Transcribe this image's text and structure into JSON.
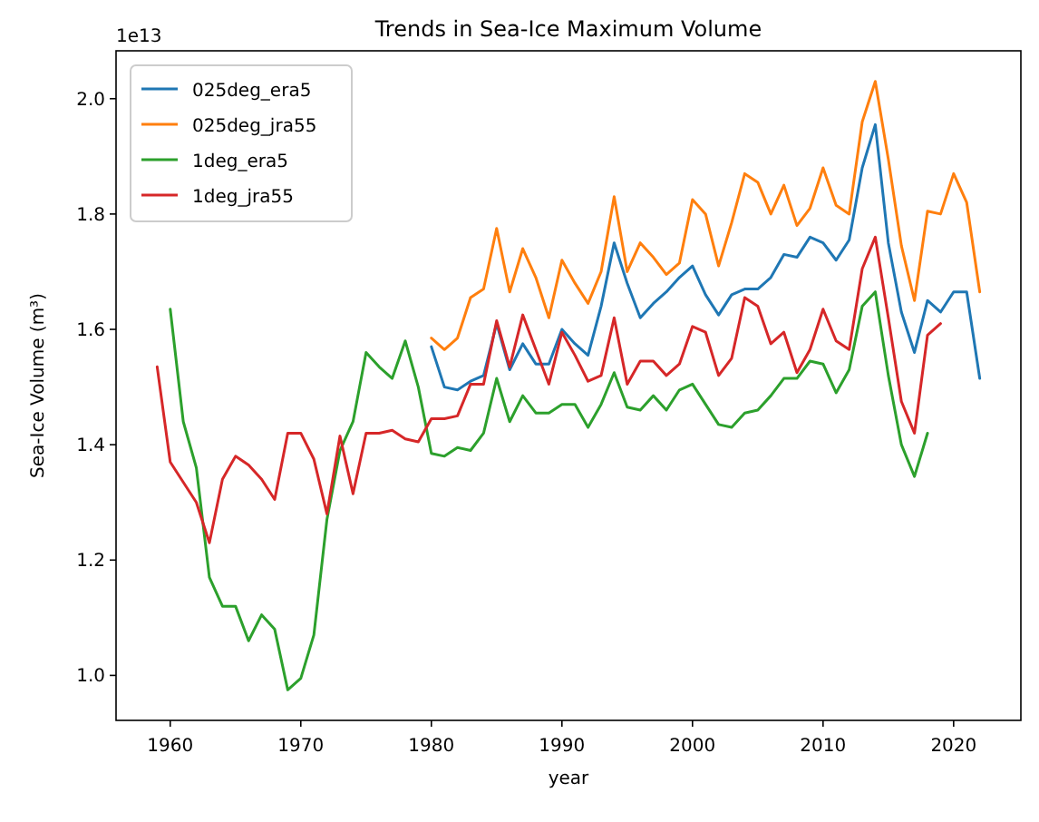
{
  "chart_data": {
    "type": "line",
    "title": "Trends in Sea-Ice Maximum Volume",
    "xlabel": "year",
    "ylabel": "Sea-Ice Volume (m³)",
    "annotations": [
      "1e13"
    ],
    "xlim": [
      1955.85,
      2025.15
    ],
    "xticks": [
      1960,
      1970,
      1980,
      1990,
      2000,
      2010,
      2020
    ],
    "ylim": [
      0.922,
      2.083
    ],
    "yticks": [
      {
        "value": 1.0,
        "label": "1.0"
      },
      1.2,
      1.4,
      1.6,
      1.8,
      {
        "value": 2.0,
        "label": "2.0"
      }
    ],
    "legend": "top left",
    "grid": false,
    "series": [
      {
        "name": "025deg_era5",
        "color": "#1f77b4",
        "x": [
          1980,
          1981,
          1982,
          1983,
          1984,
          1985,
          1986,
          1987,
          1988,
          1989,
          1990,
          1991,
          1992,
          1993,
          1994,
          1995,
          1996,
          1997,
          1998,
          1999,
          2000,
          2001,
          2002,
          2003,
          2004,
          2005,
          2006,
          2007,
          2008,
          2009,
          2010,
          2011,
          2012,
          2013,
          2014,
          2015,
          2016,
          2017,
          2018,
          2019,
          2020,
          2021,
          2022
        ],
        "values": [
          1.57,
          1.5,
          1.495,
          1.51,
          1.52,
          1.61,
          1.53,
          1.575,
          1.54,
          1.54,
          1.6,
          1.575,
          1.555,
          1.64,
          1.75,
          1.68,
          1.62,
          1.645,
          1.665,
          1.69,
          1.71,
          1.66,
          1.625,
          1.66,
          1.67,
          1.67,
          1.69,
          1.73,
          1.725,
          1.76,
          1.75,
          1.72,
          1.755,
          1.88,
          1.955,
          1.75,
          1.63,
          1.56,
          1.65,
          1.63,
          1.665,
          1.665,
          1.515
        ]
      },
      {
        "name": "025deg_jra55",
        "color": "#ff7f0e",
        "x": [
          1980,
          1981,
          1982,
          1983,
          1984,
          1985,
          1986,
          1987,
          1988,
          1989,
          1990,
          1991,
          1992,
          1993,
          1994,
          1995,
          1996,
          1997,
          1998,
          1999,
          2000,
          2001,
          2002,
          2003,
          2004,
          2005,
          2006,
          2007,
          2008,
          2009,
          2010,
          2011,
          2012,
          2013,
          2014,
          2015,
          2016,
          2017,
          2018,
          2019,
          2020,
          2021,
          2022
        ],
        "values": [
          1.585,
          1.565,
          1.585,
          1.655,
          1.67,
          1.775,
          1.665,
          1.74,
          1.69,
          1.62,
          1.72,
          1.68,
          1.645,
          1.7,
          1.83,
          1.7,
          1.75,
          1.725,
          1.695,
          1.715,
          1.825,
          1.8,
          1.71,
          1.785,
          1.87,
          1.855,
          1.8,
          1.85,
          1.78,
          1.81,
          1.88,
          1.815,
          1.8,
          1.96,
          2.03,
          1.895,
          1.745,
          1.65,
          1.805,
          1.8,
          1.87,
          1.82,
          1.665
        ]
      },
      {
        "name": "1deg_era5",
        "color": "#2ca02c",
        "x": [
          1960,
          1961,
          1962,
          1963,
          1964,
          1965,
          1966,
          1967,
          1968,
          1969,
          1970,
          1971,
          1972,
          1973,
          1974,
          1975,
          1976,
          1977,
          1978,
          1979,
          1980,
          1981,
          1982,
          1983,
          1984,
          1985,
          1986,
          1987,
          1988,
          1989,
          1990,
          1991,
          1992,
          1993,
          1994,
          1995,
          1996,
          1997,
          1998,
          1999,
          2000,
          2001,
          2002,
          2003,
          2004,
          2005,
          2006,
          2007,
          2008,
          2009,
          2010,
          2011,
          2012,
          2013,
          2014,
          2015,
          2016,
          2017,
          2018
        ],
        "values": [
          1.635,
          1.44,
          1.36,
          1.17,
          1.12,
          1.12,
          1.06,
          1.105,
          1.08,
          0.975,
          0.995,
          1.07,
          1.27,
          1.39,
          1.44,
          1.56,
          1.535,
          1.515,
          1.58,
          1.5,
          1.385,
          1.38,
          1.395,
          1.39,
          1.42,
          1.515,
          1.44,
          1.485,
          1.455,
          1.455,
          1.47,
          1.47,
          1.43,
          1.47,
          1.525,
          1.465,
          1.46,
          1.485,
          1.46,
          1.495,
          1.505,
          1.47,
          1.435,
          1.43,
          1.455,
          1.46,
          1.485,
          1.515,
          1.515,
          1.545,
          1.54,
          1.49,
          1.53,
          1.64,
          1.665,
          1.52,
          1.4,
          1.345,
          1.42
        ]
      },
      {
        "name": "1deg_jra55",
        "color": "#d62728",
        "x": [
          1959,
          1960,
          1961,
          1962,
          1963,
          1964,
          1965,
          1966,
          1967,
          1968,
          1969,
          1970,
          1971,
          1972,
          1973,
          1974,
          1975,
          1976,
          1977,
          1978,
          1979,
          1980,
          1981,
          1982,
          1983,
          1984,
          1985,
          1986,
          1987,
          1988,
          1989,
          1990,
          1991,
          1992,
          1993,
          1994,
          1995,
          1996,
          1997,
          1998,
          1999,
          2000,
          2001,
          2002,
          2003,
          2004,
          2005,
          2006,
          2007,
          2008,
          2009,
          2010,
          2011,
          2012,
          2013,
          2014,
          2015,
          2016,
          2017,
          2018,
          2019
        ],
        "values": [
          1.535,
          1.37,
          1.335,
          1.3,
          1.23,
          1.34,
          1.38,
          1.365,
          1.34,
          1.305,
          1.42,
          1.42,
          1.375,
          1.28,
          1.415,
          1.315,
          1.42,
          1.42,
          1.425,
          1.41,
          1.405,
          1.445,
          1.445,
          1.45,
          1.505,
          1.505,
          1.615,
          1.535,
          1.625,
          1.565,
          1.505,
          1.595,
          1.555,
          1.51,
          1.52,
          1.62,
          1.505,
          1.545,
          1.545,
          1.52,
          1.54,
          1.605,
          1.595,
          1.52,
          1.55,
          1.655,
          1.64,
          1.575,
          1.595,
          1.525,
          1.565,
          1.635,
          1.58,
          1.565,
          1.705,
          1.76,
          1.62,
          1.475,
          1.42,
          1.59,
          1.61
        ]
      }
    ]
  }
}
